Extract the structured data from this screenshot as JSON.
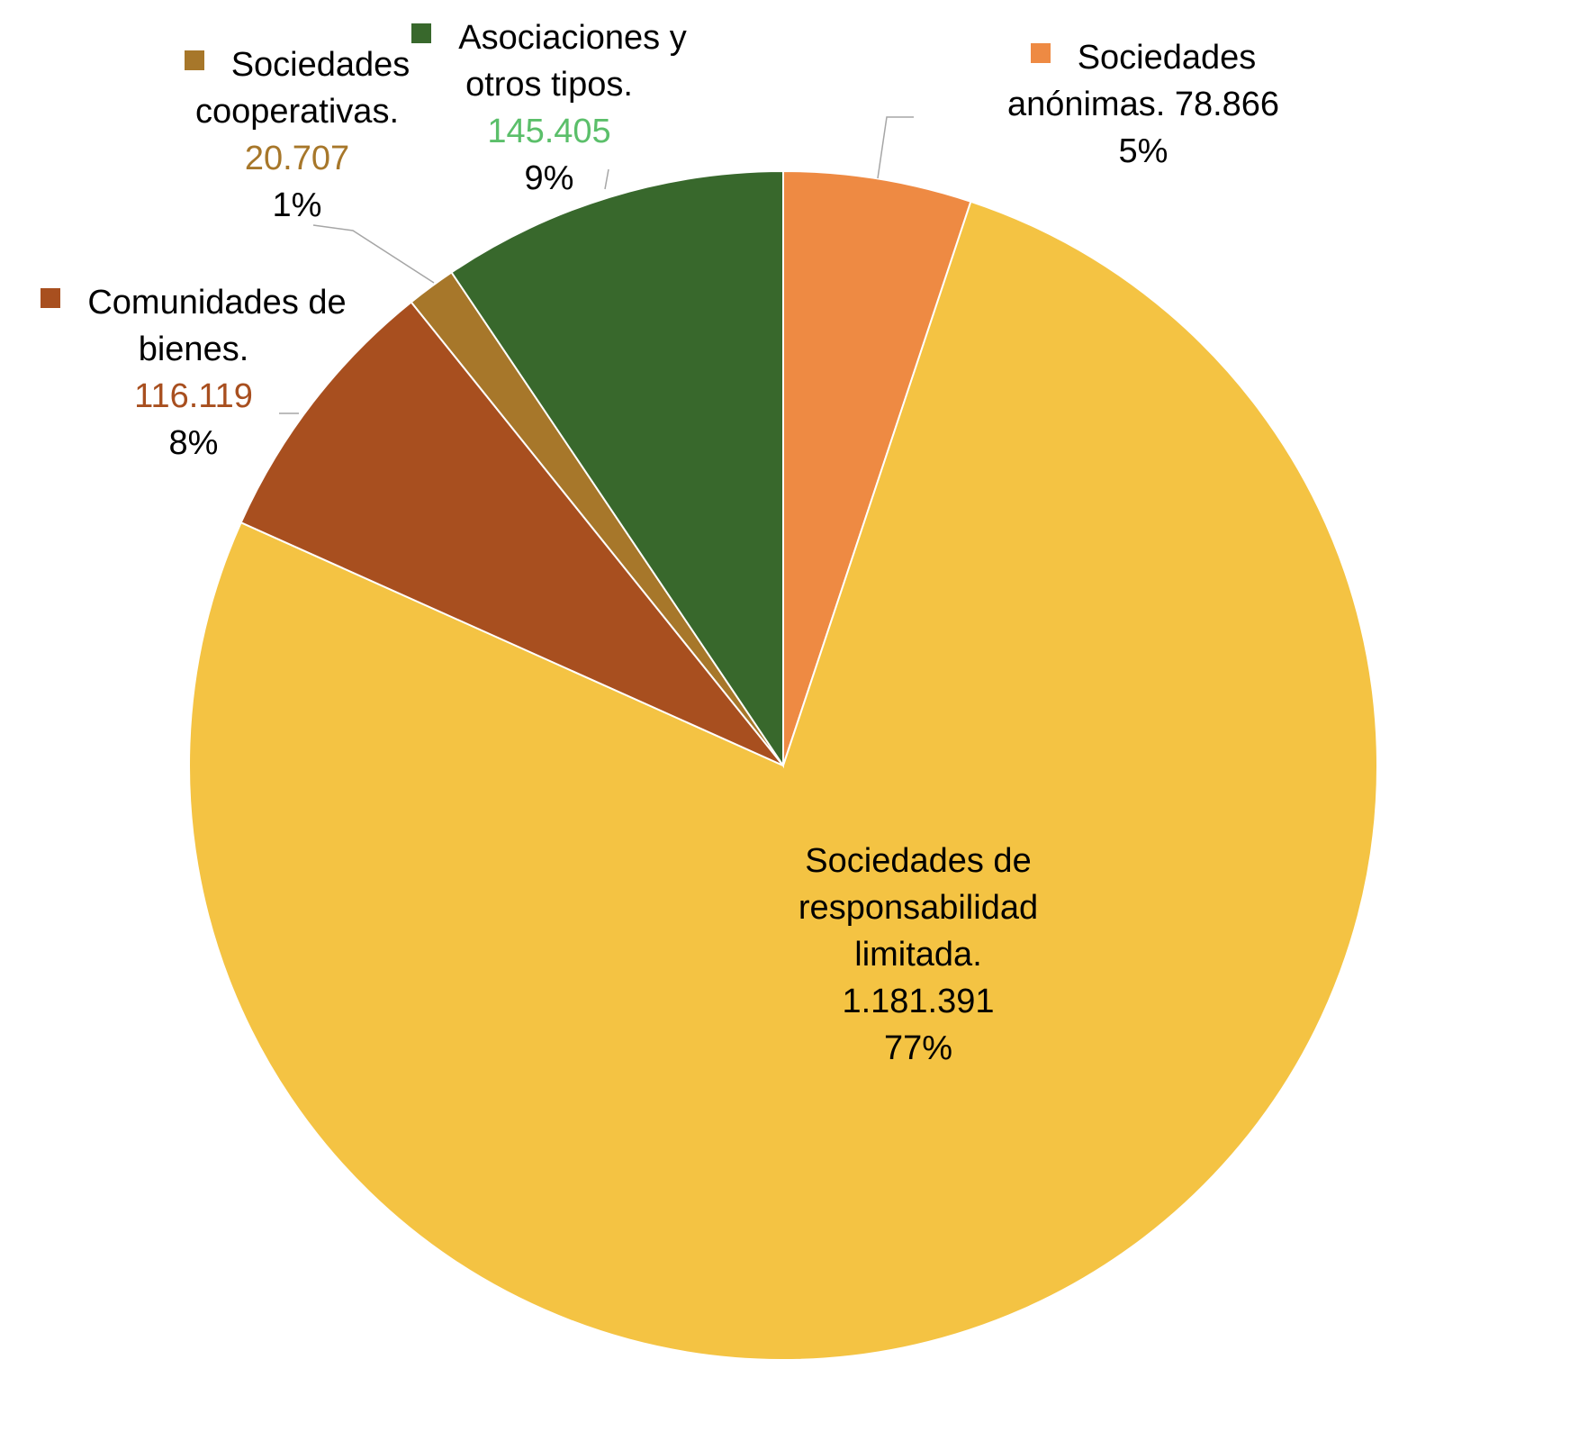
{
  "chart_data": {
    "type": "pie",
    "title": "",
    "series": [
      {
        "category": "Sociedades anónimas.",
        "value": 78866,
        "value_label": "78.866",
        "percent_label": "5%",
        "color": "#ee8a43",
        "value_color": "#000000"
      },
      {
        "category": "Sociedades de responsabilidad limitada.",
        "value": 1181391,
        "value_label": "1.181.391",
        "percent_label": "77%",
        "color": "#f4c343",
        "value_color": "#000000"
      },
      {
        "category": "Comunidades de bienes.",
        "value": 116119,
        "value_label": "116.119",
        "percent_label": "8%",
        "color": "#a84f1f",
        "value_color": "#a84f1f"
      },
      {
        "category": "Sociedades cooperativas.",
        "value": 20707,
        "value_label": "20.707",
        "percent_label": "1%",
        "color": "#a7772a",
        "value_color": "#a7772a"
      },
      {
        "category": "Asociaciones y otros tipos.",
        "value": 145405,
        "value_label": "145.405",
        "percent_label": "9%",
        "color": "#38682c",
        "value_color": "#5bbf6a"
      }
    ],
    "label_lines": [
      [
        "Sociedades",
        "anónimas. 78.866",
        "5%"
      ],
      [
        "Sociedades de",
        "responsabilidad",
        "limitada.",
        "1.181.391",
        "77%"
      ],
      [
        "Comunidades de",
        "bienes.",
        "116.119",
        "8%"
      ],
      [
        "Sociedades",
        "cooperativas.",
        "20.707",
        "1%"
      ],
      [
        "Asociaciones y",
        "otros tipos.",
        "145.405",
        "9%"
      ]
    ],
    "legend_markers": true,
    "grid": false
  }
}
